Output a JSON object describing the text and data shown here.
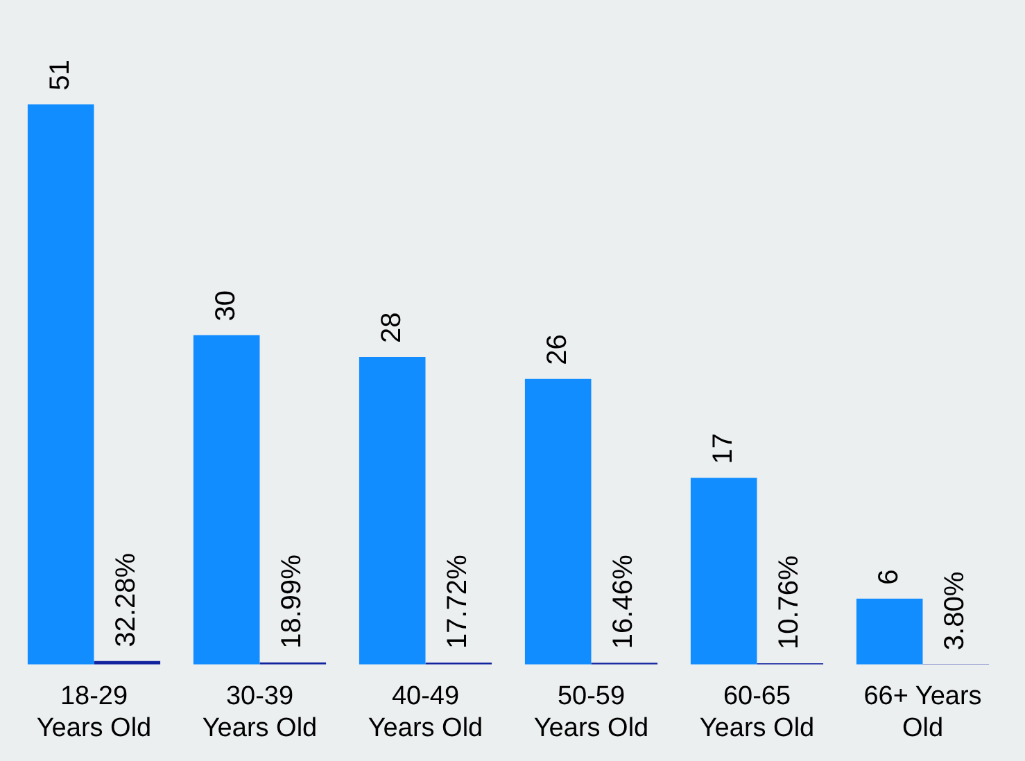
{
  "chart_data": {
    "type": "bar",
    "categories": [
      "18-29 Years Old",
      "30-39 Years Old",
      "40-49 Years Old",
      "50-59 Years Old",
      "60-65 Years Old",
      "66+ Years Old"
    ],
    "series": [
      {
        "color": "#118dff",
        "values": [
          51,
          30,
          28,
          26,
          17,
          6
        ],
        "value_labels": [
          "51",
          "30",
          "28",
          "26",
          "17",
          "6"
        ]
      },
      {
        "color": "#12239e",
        "values": [
          0.3228,
          0.1899,
          0.1772,
          0.1646,
          0.1076,
          0.038
        ],
        "value_labels": [
          "32.28%",
          "18.99%",
          "17.72%",
          "16.46%",
          "10.76%",
          "3.80%"
        ]
      }
    ],
    "grid": false,
    "legend": false
  }
}
